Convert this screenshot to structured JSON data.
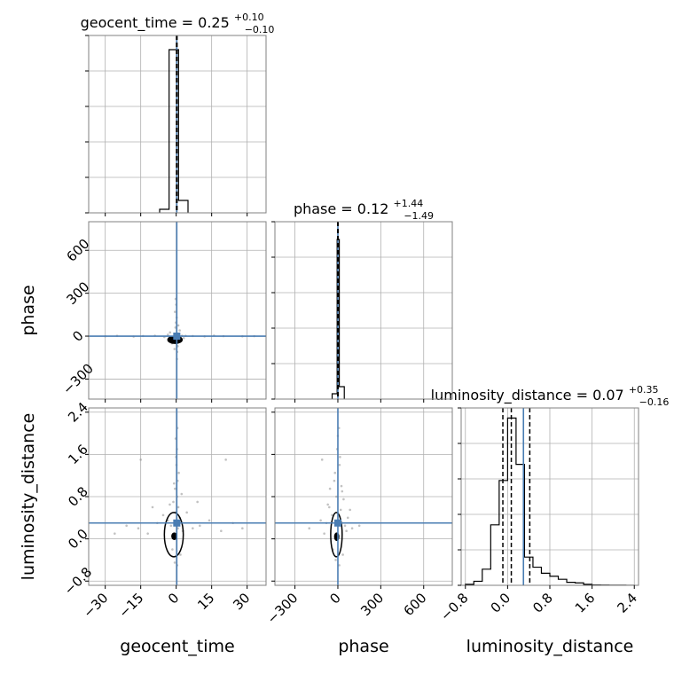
{
  "colors": {
    "truth": "#4a7db3",
    "hist": "#000000",
    "grid": "#b0b0b0",
    "scatter": "#9a9a9a"
  },
  "titles": {
    "geocent_time": {
      "prefix": "geocent_time = 0.25",
      "sup": "+0.10",
      "sub": "−0.10"
    },
    "phase": {
      "prefix": "phase = 0.12",
      "sup": "+1.44",
      "sub": "−1.49"
    },
    "luminosity_distance": {
      "prefix": "luminosity_distance = 0.07",
      "sup": "+0.35",
      "sub": "−0.16"
    }
  },
  "axis_labels": {
    "x": [
      "geocent_time",
      "phase",
      "luminosity_distance"
    ],
    "y": [
      "phase",
      "luminosity_distance"
    ]
  },
  "chart_data": {
    "type": "scatter",
    "subtype": "corner",
    "parameters": [
      "geocent_time",
      "phase",
      "luminosity_distance"
    ],
    "truths": [
      0.25,
      0.12,
      0.3
    ],
    "ranges": {
      "geocent_time": [
        -37,
        38
      ],
      "phase": [
        -440,
        800
      ],
      "luminosity_distance": [
        -0.88,
        2.48
      ]
    },
    "ticks": {
      "geocent_time": {
        "values": [
          -30,
          -15,
          0,
          15,
          30
        ],
        "labels": [
          "−30",
          "−15",
          "0",
          "15",
          "30"
        ]
      },
      "phase": {
        "values": [
          -300,
          0,
          300,
          600
        ],
        "labels": [
          "−300",
          "0",
          "300",
          "600"
        ]
      },
      "luminosity_distance": {
        "values": [
          -0.8,
          0,
          0.8,
          1.6,
          2.4
        ],
        "labels": [
          "−0.8",
          "0.0",
          "0.8",
          "1.6",
          "2.4"
        ]
      }
    },
    "quantiles": {
      "geocent_time": [
        0.15,
        0.25,
        0.35
      ],
      "phase": [
        -1.37,
        0.12,
        1.56
      ],
      "luminosity_distance": [
        -0.09,
        0.07,
        0.42
      ]
    },
    "histograms": {
      "geocent_time": {
        "edges": [
          -7,
          -3,
          1,
          5
        ],
        "counts": [
          0.02,
          0.92,
          0.07
        ],
        "ymax": 1.0
      },
      "phase": {
        "edges": [
          -40,
          -5,
          10,
          45
        ],
        "counts": [
          0.03,
          0.9,
          0.07
        ],
        "ymax": 1.0
      },
      "luminosity_distance": {
        "edges": [
          -0.8,
          -0.64,
          -0.48,
          -0.32,
          -0.16,
          0,
          0.16,
          0.32,
          0.48,
          0.64,
          0.8,
          0.96,
          1.12,
          1.28,
          1.44,
          1.6,
          1.76,
          1.92,
          2.08,
          2.24,
          2.4
        ],
        "counts": [
          0.005,
          0.02,
          0.08,
          0.3,
          0.52,
          0.83,
          0.6,
          0.14,
          0.09,
          0.06,
          0.045,
          0.03,
          0.015,
          0.012,
          0.005,
          0.002,
          0.001,
          0.0008,
          0.0005,
          0.0003
        ],
        "ymax": 0.88
      }
    },
    "contours": {
      "geocent_time__phase": [
        {
          "center": [
            -0.5,
            -25
          ],
          "half_width": [
            3,
            25
          ]
        }
      ],
      "geocent_time__luminosity_distance": [
        {
          "center": [
            -0.8,
            0.05
          ],
          "half_width": [
            1.0,
            0.06
          ]
        },
        {
          "center": [
            -1.0,
            0.08
          ],
          "half_width": [
            4,
            0.42
          ]
        }
      ],
      "phase__luminosity_distance": [
        {
          "center": [
            -8,
            0.04
          ],
          "half_width": [
            14,
            0.07
          ]
        },
        {
          "center": [
            -10,
            0.08
          ],
          "half_width": [
            40,
            0.42
          ]
        }
      ]
    },
    "samples": {
      "geocent_time__phase": [
        [
          0.3,
          18
        ],
        [
          -0.6,
          -22
        ],
        [
          0.5,
          5
        ],
        [
          -1.4,
          -31
        ],
        [
          1.2,
          12
        ],
        [
          0.1,
          -40
        ],
        [
          -0.3,
          60
        ],
        [
          0.8,
          -8
        ],
        [
          -2.2,
          -18
        ],
        [
          2.5,
          3
        ],
        [
          0.2,
          130
        ],
        [
          -0.1,
          95
        ],
        [
          0.4,
          -110
        ],
        [
          -0.5,
          170
        ],
        [
          0.6,
          -70
        ],
        [
          4,
          2
        ],
        [
          -5,
          -6
        ],
        [
          7,
          1
        ],
        [
          -9,
          3
        ],
        [
          12,
          -2
        ],
        [
          -14,
          1
        ],
        [
          20,
          0
        ],
        [
          -25,
          2
        ],
        [
          28,
          -1
        ],
        [
          33,
          0
        ],
        [
          -30,
          -1
        ],
        [
          16,
          4
        ],
        [
          -18,
          -3
        ],
        [
          1.5,
          40
        ],
        [
          -1.8,
          -50
        ],
        [
          0.9,
          75
        ],
        [
          -0.7,
          -90
        ],
        [
          0.0,
          220
        ],
        [
          0.3,
          -160
        ],
        [
          -0.2,
          260
        ],
        [
          3.2,
          -14
        ],
        [
          -3.5,
          10
        ],
        [
          2,
          -30
        ],
        [
          -2.6,
          26
        ],
        [
          0.45,
          -5
        ]
      ],
      "geocent_time__luminosity_distance": [
        [
          0.2,
          0.3
        ],
        [
          0.4,
          0.8
        ],
        [
          -0.3,
          0.5
        ],
        [
          0.6,
          1.1
        ],
        [
          0.1,
          1.4
        ],
        [
          -0.5,
          0.95
        ],
        [
          0.9,
          0.6
        ],
        [
          -1.2,
          0.7
        ],
        [
          1.5,
          0.4
        ],
        [
          -2.2,
          0.25
        ],
        [
          2.8,
          0.15
        ],
        [
          -3.5,
          0.35
        ],
        [
          0.3,
          1.7
        ],
        [
          -0.2,
          1.9
        ],
        [
          0.5,
          2.1
        ],
        [
          1.1,
          1.25
        ],
        [
          -0.9,
          1.05
        ],
        [
          4.5,
          0.5
        ],
        [
          -5.5,
          0.45
        ],
        [
          7,
          0.2
        ],
        [
          -8,
          0.3
        ],
        [
          10,
          0.25
        ],
        [
          -12,
          0.1
        ],
        [
          14,
          0.35
        ],
        [
          -16,
          0.2
        ],
        [
          19,
          0.15
        ],
        [
          -21,
          0.25
        ],
        [
          24,
          0.3
        ],
        [
          -26,
          0.1
        ],
        [
          28,
          0.2
        ],
        [
          -10,
          0.6
        ],
        [
          9,
          0.7
        ],
        [
          -1.6,
          -0.2
        ],
        [
          1.8,
          -0.3
        ],
        [
          0.4,
          -0.5
        ],
        [
          -0.6,
          -0.45
        ],
        [
          2.3,
          0.85
        ],
        [
          -2.7,
          0.65
        ],
        [
          0.0,
          1.55
        ],
        [
          0.7,
          0.2
        ],
        [
          -15,
          1.5
        ],
        [
          21,
          1.5
        ]
      ],
      "phase__luminosity_distance": [
        [
          5,
          0.35
        ],
        [
          -10,
          0.8
        ],
        [
          20,
          0.55
        ],
        [
          -25,
          1.1
        ],
        [
          12,
          1.4
        ],
        [
          -5,
          1.7
        ],
        [
          30,
          0.9
        ],
        [
          -40,
          0.45
        ],
        [
          50,
          0.25
        ],
        [
          -60,
          0.6
        ],
        [
          70,
          0.4
        ],
        [
          -80,
          0.3
        ],
        [
          100,
          0.2
        ],
        [
          -120,
          0.35
        ],
        [
          0,
          1.95
        ],
        [
          15,
          1.55
        ],
        [
          -20,
          1.25
        ],
        [
          40,
          0.75
        ],
        [
          -55,
          0.95
        ],
        [
          8,
          2.1
        ],
        [
          -110,
          1.5
        ],
        [
          -35,
          -0.2
        ],
        [
          35,
          -0.3
        ],
        [
          10,
          -0.5
        ],
        [
          -15,
          -0.4
        ],
        [
          85,
          0.55
        ],
        [
          -95,
          0.1
        ],
        [
          60,
          0.15
        ],
        [
          -70,
          0.65
        ],
        [
          25,
          1.0
        ],
        [
          -200,
          0.2
        ],
        [
          150,
          0.25
        ]
      ]
    }
  }
}
